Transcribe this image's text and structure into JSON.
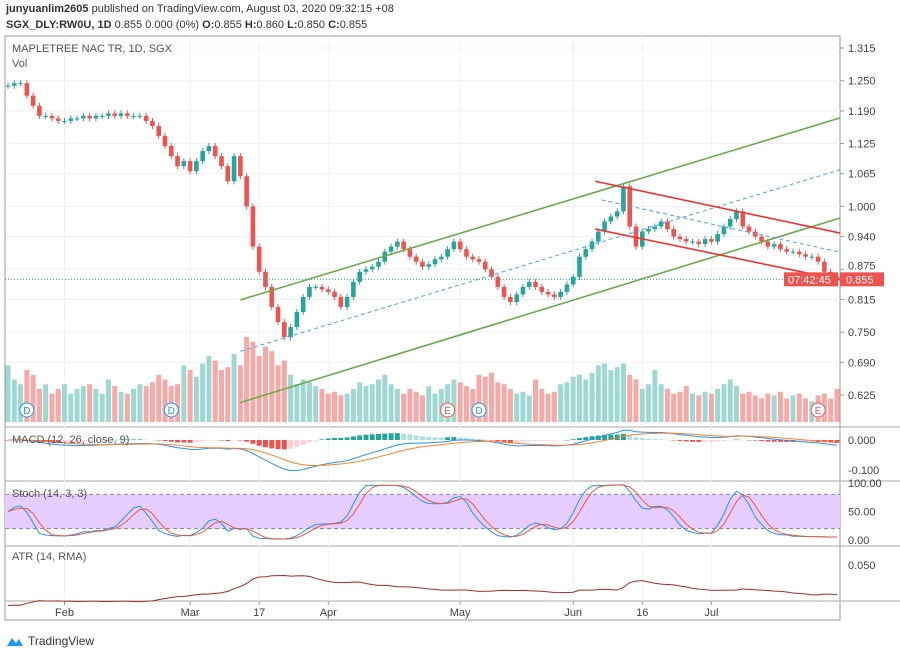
{
  "header": {
    "author": "junyuanlim2605",
    "published": "published on TradingView.com, August 03, 2020 09:32:15 +08",
    "symbol": "SGX_DLY:RW0U, 1D",
    "change": "0.855 0.000 (0%)",
    "o_label": "O:",
    "o": "0.855",
    "h_label": "H:",
    "h": "0.860",
    "l_label": "L:",
    "l": "0.850",
    "c_label": "C:",
    "c": "0.855"
  },
  "footer": {
    "brand": "TradingView"
  },
  "colors": {
    "up": "#26a69a",
    "down": "#ef5350",
    "up_vol": "#9fd8d2",
    "down_vol": "#f6a9a7",
    "channel": "#6aab4a",
    "red_channel": "#f23030",
    "dashed": "#4aa3ee",
    "macd": "#2196f3",
    "signal": "#ff7f27",
    "stoch_k": "#2196f3",
    "stoch_d": "#ef5a3a",
    "stoch_band": "#e6ccff",
    "atr": "#a52a2a",
    "last_price_line": "#26a69a"
  },
  "chart_data": {
    "type": "candlestick",
    "title": "MAPLETREE NAC TR, 1D, SGX",
    "volume_label": "Vol",
    "price_axis": {
      "scale": "linear",
      "ticks": [
        "1.315",
        "1.250",
        "1.190",
        "1.125",
        "1.065",
        "1.000",
        "0.940",
        "0.875",
        "0.815",
        "0.750",
        "0.690",
        "0.625"
      ],
      "range": [
        0.625,
        1.315
      ]
    },
    "last_price": "0.855",
    "countdown": "07:42:45",
    "time_axis": {
      "ticks": [
        {
          "label": "Feb",
          "bar": 9
        },
        {
          "label": "Mar",
          "bar": 29
        },
        {
          "label": "17",
          "bar": 40
        },
        {
          "label": "Apr",
          "bar": 51
        },
        {
          "label": "May",
          "bar": 72
        },
        {
          "label": "Jun",
          "bar": 90
        },
        {
          "label": "16",
          "bar": 101
        },
        {
          "label": "Jul",
          "bar": 112
        }
      ]
    },
    "grid": true,
    "close": [
      1.24,
      1.245,
      1.245,
      1.22,
      1.2,
      1.18,
      1.18,
      1.175,
      1.17,
      1.17,
      1.175,
      1.175,
      1.18,
      1.175,
      1.18,
      1.18,
      1.185,
      1.18,
      1.185,
      1.18,
      1.18,
      1.18,
      1.17,
      1.16,
      1.14,
      1.12,
      1.1,
      1.08,
      1.09,
      1.07,
      1.09,
      1.11,
      1.12,
      1.1,
      1.08,
      1.05,
      1.1,
      1.06,
      1.0,
      0.92,
      0.87,
      0.84,
      0.8,
      0.77,
      0.74,
      0.76,
      0.79,
      0.82,
      0.84,
      0.84,
      0.835,
      0.83,
      0.82,
      0.8,
      0.82,
      0.85,
      0.87,
      0.875,
      0.88,
      0.89,
      0.91,
      0.92,
      0.93,
      0.915,
      0.9,
      0.89,
      0.88,
      0.885,
      0.895,
      0.9,
      0.915,
      0.93,
      0.915,
      0.9,
      0.895,
      0.89,
      0.875,
      0.86,
      0.84,
      0.82,
      0.81,
      0.825,
      0.84,
      0.85,
      0.84,
      0.83,
      0.825,
      0.82,
      0.83,
      0.845,
      0.86,
      0.9,
      0.915,
      0.93,
      0.95,
      0.97,
      0.98,
      0.99,
      1.04,
      0.96,
      0.92,
      0.95,
      0.955,
      0.96,
      0.97,
      0.955,
      0.94,
      0.935,
      0.93,
      0.93,
      0.925,
      0.935,
      0.93,
      0.945,
      0.96,
      0.975,
      0.99,
      0.96,
      0.95,
      0.94,
      0.93,
      0.92,
      0.925,
      0.915,
      0.91,
      0.91,
      0.905,
      0.9,
      0.9,
      0.89,
      0.87,
      0.86,
      0.855
    ],
    "volume": [
      60,
      45,
      40,
      55,
      50,
      35,
      40,
      30,
      35,
      40,
      30,
      35,
      38,
      40,
      35,
      30,
      45,
      38,
      32,
      30,
      35,
      40,
      38,
      42,
      50,
      45,
      38,
      40,
      60,
      55,
      48,
      62,
      70,
      65,
      55,
      58,
      72,
      60,
      90,
      85,
      70,
      80,
      75,
      60,
      65,
      50,
      40,
      45,
      42,
      38,
      35,
      30,
      32,
      28,
      30,
      35,
      42,
      38,
      40,
      45,
      50,
      40,
      35,
      30,
      35,
      32,
      28,
      38,
      30,
      35,
      40,
      45,
      42,
      38,
      35,
      50,
      48,
      52,
      42,
      40,
      35,
      30,
      32,
      28,
      45,
      35,
      30,
      32,
      40,
      42,
      48,
      50,
      45,
      52,
      60,
      62,
      55,
      58,
      62,
      50,
      45,
      35,
      40,
      55,
      40,
      35,
      30,
      32,
      38,
      30,
      28,
      32,
      30,
      35,
      40,
      45,
      38,
      30,
      32,
      28,
      25,
      30,
      28,
      32,
      25,
      28,
      30,
      25,
      22,
      28,
      30,
      25,
      35
    ],
    "events": [
      {
        "type": "D",
        "bar": 3
      },
      {
        "type": "D",
        "bar": 26
      },
      {
        "type": "E",
        "bar": 70
      },
      {
        "type": "D",
        "bar": 75
      },
      {
        "type": "E",
        "bar": 129
      }
    ],
    "drawings": [
      {
        "kind": "channel-upper",
        "color": "channel",
        "from": [
          37,
          0.814
        ],
        "to": [
          132.5,
          1.176
        ]
      },
      {
        "kind": "channel-lower",
        "color": "channel",
        "from": [
          37,
          0.61
        ],
        "to": [
          132.5,
          0.977
        ]
      },
      {
        "kind": "channel-mid",
        "color": "dashed",
        "dashed": true,
        "from": [
          37,
          0.712
        ],
        "to": [
          132.5,
          1.073
        ]
      },
      {
        "kind": "red-upper",
        "color": "red_channel",
        "from": [
          93.5,
          1.05
        ],
        "to": [
          132.5,
          0.947
        ]
      },
      {
        "kind": "red-lower",
        "color": "red_channel",
        "from": [
          93.5,
          0.955
        ],
        "to": [
          132.5,
          0.854
        ]
      },
      {
        "kind": "red-mid",
        "color": "dashed",
        "dashed": true,
        "from": [
          94.5,
          1.013
        ],
        "to": [
          132.5,
          0.909
        ]
      }
    ],
    "indicators": {
      "macd": {
        "label": "MACD (12, 26, close, 9)",
        "ticks": [
          "0.000",
          "-0.100"
        ]
      },
      "stoch": {
        "label": "Stoch (14, 3, 3)",
        "ticks": [
          "100.00",
          "50.00",
          "0.00"
        ],
        "bands": [
          80,
          20
        ]
      },
      "atr": {
        "label": "ATR (14, RMA)",
        "ticks": [
          "0.050"
        ]
      }
    }
  }
}
